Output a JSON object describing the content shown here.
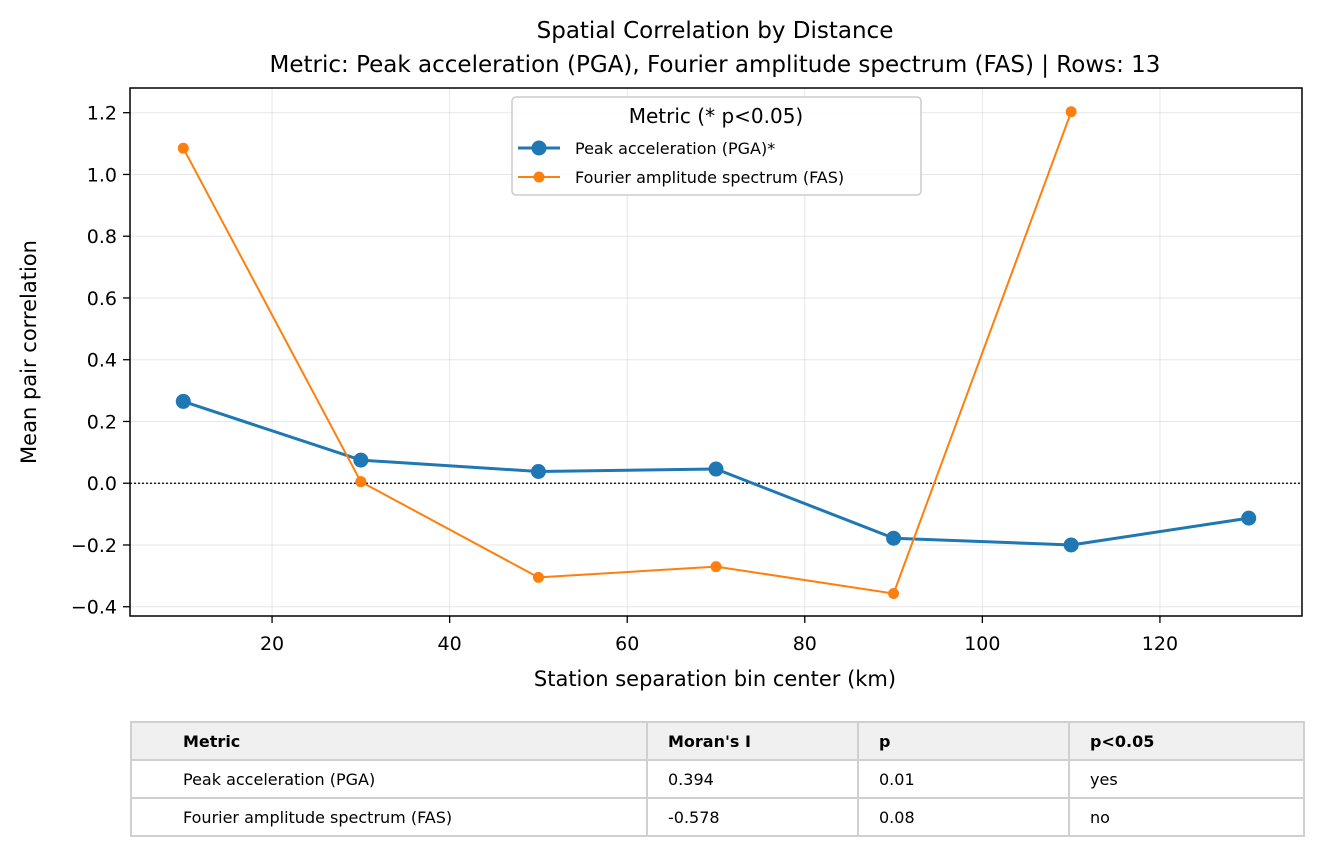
{
  "title": "Spatial Correlation by Distance",
  "subtitle": "Metric: Peak acceleration (PGA), Fourier amplitude spectrum (FAS) | Rows: 13",
  "chart_data": {
    "type": "line",
    "xlabel": "Station separation bin center (km)",
    "ylabel": "Mean pair correlation",
    "xlim": [
      4,
      136
    ],
    "ylim": [
      -0.43,
      1.28
    ],
    "xticks": [
      20,
      40,
      60,
      80,
      100,
      120
    ],
    "yticks": [
      -0.4,
      -0.2,
      0.0,
      0.2,
      0.4,
      0.6,
      0.8,
      1.0,
      1.2
    ],
    "grid": true,
    "reference_line_y": 0.0,
    "legend": {
      "title": "Metric (* p<0.05)",
      "placement": "upper center"
    },
    "series": [
      {
        "name": "Peak acceleration (PGA)*",
        "color": "#1f77b4",
        "x": [
          10,
          30,
          50,
          70,
          90,
          110,
          130
        ],
        "y": [
          0.265,
          0.075,
          0.038,
          0.046,
          -0.178,
          -0.2,
          -0.113
        ]
      },
      {
        "name": "Fourier amplitude spectrum (FAS)",
        "color": "#ff7f0e",
        "x": [
          10,
          30,
          50,
          70,
          90,
          110
        ],
        "y": [
          1.085,
          0.005,
          -0.305,
          -0.27,
          -0.357,
          1.203
        ]
      }
    ]
  },
  "table": {
    "headers": [
      "Metric",
      "Moran's I",
      "p",
      "p<0.05"
    ],
    "rows": [
      [
        "Peak acceleration (PGA)",
        "0.394",
        "0.01",
        "yes"
      ],
      [
        "Fourier amplitude spectrum (FAS)",
        "-0.578",
        "0.08",
        "no"
      ]
    ]
  }
}
